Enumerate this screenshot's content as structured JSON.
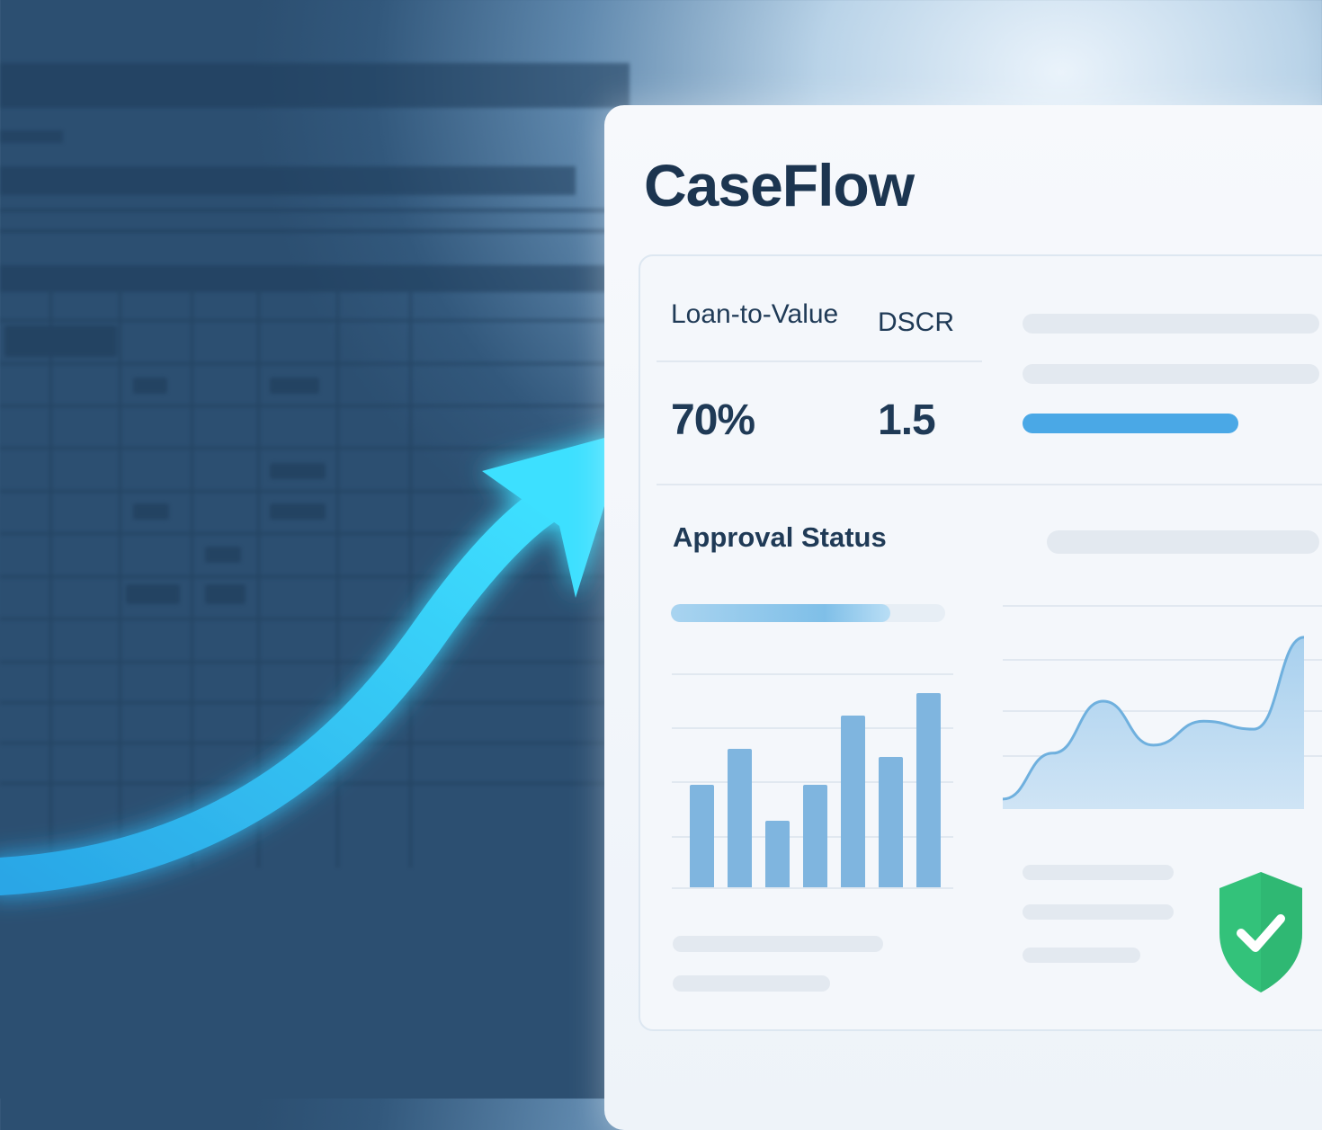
{
  "app": {
    "title": "CaseFlow"
  },
  "metrics": {
    "ltv": {
      "label": "Loan-to-Value",
      "value": "70%"
    },
    "dscr": {
      "label": "DSCR",
      "value": "1.5"
    }
  },
  "approval": {
    "label": "Approval Status",
    "progress_fraction": 0.8
  },
  "bar_chart": {
    "values": [
      3.7,
      5.0,
      2.4,
      3.7,
      6.2,
      4.7,
      7.0
    ]
  },
  "area_chart": {
    "values": [
      0.5,
      2.8,
      5.4,
      3.2,
      4.4,
      4.0,
      8.6
    ]
  },
  "colors": {
    "accent": "#3ec8f5",
    "brand_text": "#1c3550",
    "bar": "#7fb5df",
    "status_ok": "#33c27a"
  },
  "icons": {
    "status": "shield-check-icon",
    "trend": "upward-arrow-icon"
  }
}
